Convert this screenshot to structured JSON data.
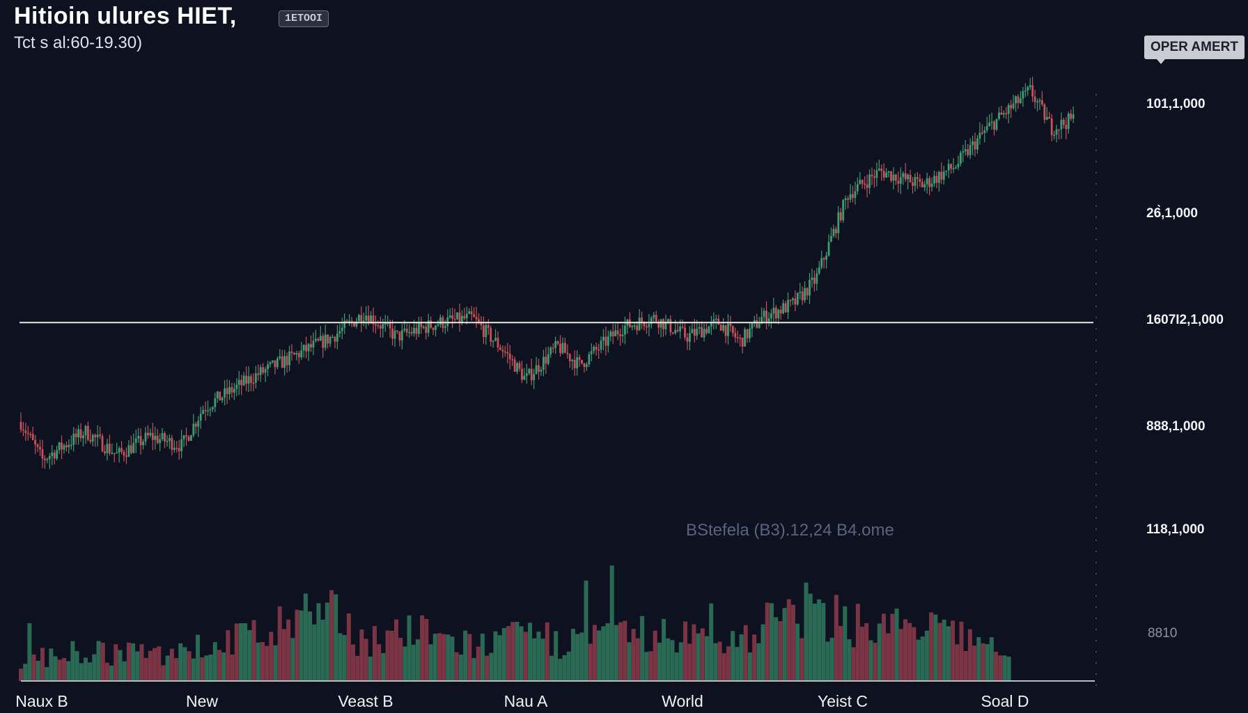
{
  "header": {
    "title": "Hitioin ulures HIET,",
    "badge": "1ETOOI",
    "subtitle": "Tct s al:60-19.30)"
  },
  "alert_button": {
    "label": "OPER AMERT"
  },
  "watermark": "BStefela (B3).12,24 B4.ome",
  "colors": {
    "background": "#0e1120",
    "up": "#3d9e74",
    "down": "#c8525a",
    "level_line": "#e8e8e0"
  },
  "chart_data": {
    "type": "candlestick",
    "title": "Hitioin ulures HIET,",
    "x_tick_labels": [
      "Naux B",
      "New",
      "Veast B",
      "Nau A",
      "World",
      "Yeist C",
      "Soal D"
    ],
    "y_tick_labels": [
      "101,1,000",
      "26̀,1,000",
      "1607I2,1,000",
      "888,1,000",
      "118,1,000",
      "8810"
    ],
    "ylim": [
      0,
      100
    ],
    "horizontal_level": 51,
    "grid": false,
    "price_path": [
      [
        0,
        30
      ],
      [
        2,
        22
      ],
      [
        6,
        28
      ],
      [
        9,
        23
      ],
      [
        12,
        27
      ],
      [
        15,
        25
      ],
      [
        17,
        33
      ],
      [
        22,
        40
      ],
      [
        29,
        48
      ],
      [
        32,
        53
      ],
      [
        35,
        48
      ],
      [
        39,
        51
      ],
      [
        42,
        52
      ],
      [
        45,
        45
      ],
      [
        47,
        39
      ],
      [
        50,
        46
      ],
      [
        52,
        42
      ],
      [
        56,
        50
      ],
      [
        59,
        52
      ],
      [
        62,
        48
      ],
      [
        65,
        51
      ],
      [
        67,
        47
      ],
      [
        69,
        52
      ],
      [
        72,
        55
      ],
      [
        74,
        60
      ],
      [
        77,
        78
      ],
      [
        80,
        83
      ],
      [
        84,
        80
      ],
      [
        87,
        84
      ],
      [
        90,
        92
      ],
      [
        94,
        100
      ],
      [
        96,
        92
      ],
      [
        98,
        94
      ]
    ],
    "volume_path": [
      [
        0,
        22
      ],
      [
        6,
        30
      ],
      [
        12,
        26
      ],
      [
        17,
        35
      ],
      [
        22,
        48
      ],
      [
        29,
        65
      ],
      [
        32,
        42
      ],
      [
        36,
        50
      ],
      [
        42,
        36
      ],
      [
        47,
        44
      ],
      [
        52,
        40
      ],
      [
        56,
        47
      ],
      [
        62,
        46
      ],
      [
        66,
        40
      ],
      [
        72,
        72
      ],
      [
        77,
        62
      ],
      [
        82,
        54
      ],
      [
        87,
        48
      ],
      [
        90,
        38
      ],
      [
        92,
        20
      ]
    ]
  }
}
